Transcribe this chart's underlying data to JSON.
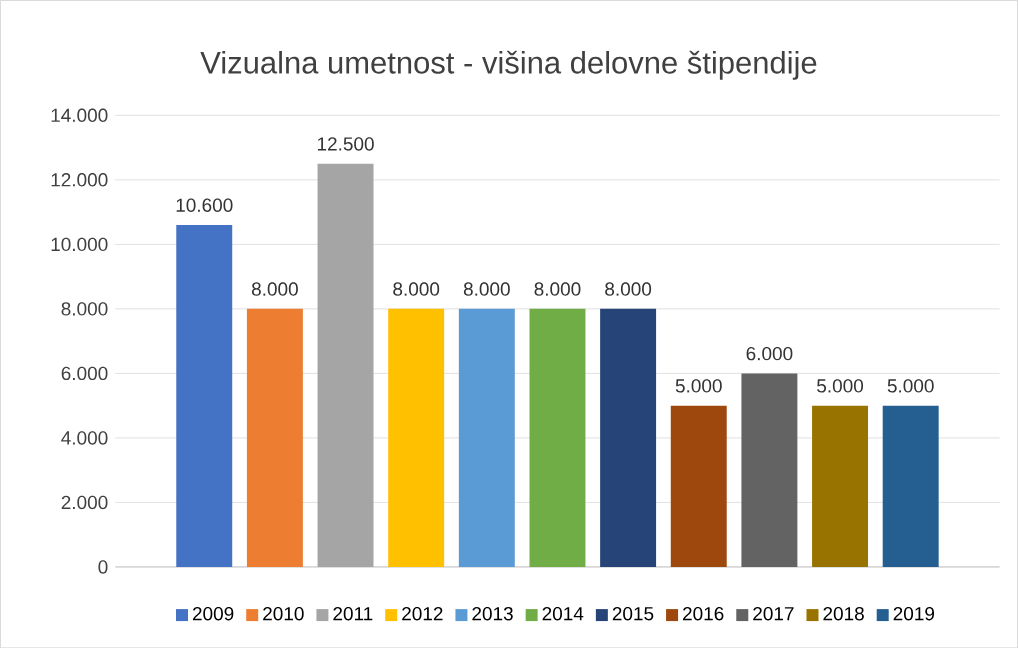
{
  "chart_data": {
    "type": "bar",
    "title": "Vizualna umetnost - višina delovne štipendije",
    "categories": [
      null
    ],
    "series": [
      {
        "name": "2009",
        "color": "#4472c4",
        "values": [
          10600
        ],
        "value_labels": [
          "10.600"
        ]
      },
      {
        "name": "2010",
        "color": "#ed7d31",
        "values": [
          8000
        ],
        "value_labels": [
          "8.000"
        ]
      },
      {
        "name": "2011",
        "color": "#a5a5a5",
        "values": [
          12500
        ],
        "value_labels": [
          "12.500"
        ]
      },
      {
        "name": "2012",
        "color": "#ffc000",
        "values": [
          8000
        ],
        "value_labels": [
          "8.000"
        ]
      },
      {
        "name": "2013",
        "color": "#5b9bd5",
        "values": [
          8000
        ],
        "value_labels": [
          "8.000"
        ]
      },
      {
        "name": "2014",
        "color": "#70ad47",
        "values": [
          8000
        ],
        "value_labels": [
          "8.000"
        ]
      },
      {
        "name": "2015",
        "color": "#264478",
        "values": [
          8000
        ],
        "value_labels": [
          "8.000"
        ]
      },
      {
        "name": "2016",
        "color": "#9e480e",
        "values": [
          5000
        ],
        "value_labels": [
          "5.000"
        ]
      },
      {
        "name": "2017",
        "color": "#636363",
        "values": [
          6000
        ],
        "value_labels": [
          "6.000"
        ]
      },
      {
        "name": "2018",
        "color": "#997300",
        "values": [
          5000
        ],
        "value_labels": [
          "5.000"
        ]
      },
      {
        "name": "2019",
        "color": "#255e91",
        "values": [
          5000
        ],
        "value_labels": [
          "5.000"
        ]
      }
    ],
    "ylim": [
      0,
      14000
    ],
    "yticks": [
      0,
      {
        "value": 2000,
        "label": "2.000"
      },
      {
        "value": 4000,
        "label": "4.000"
      },
      {
        "value": 6000,
        "label": "6.000"
      },
      {
        "value": 8000,
        "label": "8.000"
      },
      {
        "value": 10000,
        "label": "10.000"
      },
      {
        "value": 12000,
        "label": "12.000"
      },
      {
        "value": 14000,
        "label": "14.000"
      }
    ],
    "grid": "y",
    "legend": "bottom"
  }
}
